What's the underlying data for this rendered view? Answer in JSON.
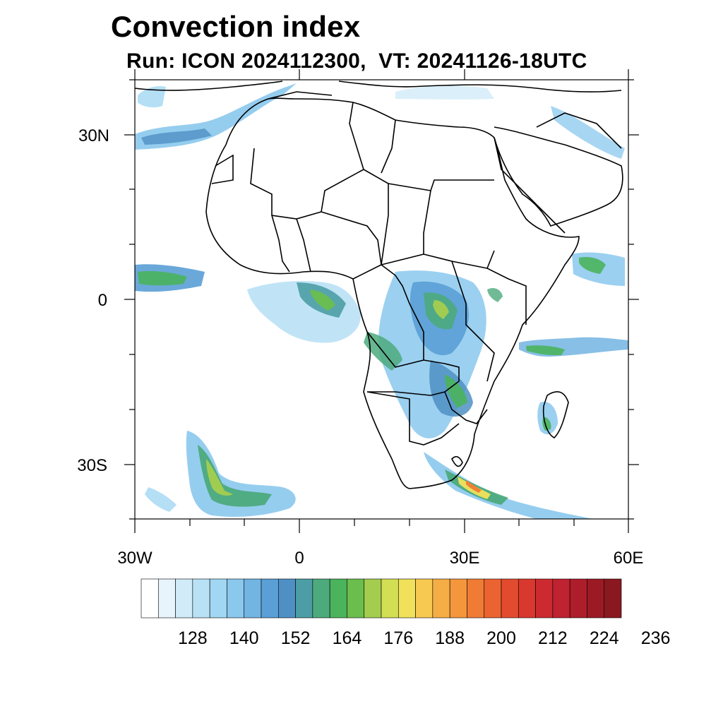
{
  "title": "Convection index",
  "subtitle": "Run: ICON 2024112300,  VT: 20241126-18UTC",
  "axes": {
    "lat_labels": [
      "30N",
      "0",
      "30S"
    ],
    "lon_labels": [
      "30W",
      "0",
      "30E",
      "60E"
    ]
  },
  "colorbar": {
    "colors": [
      "#ffffff",
      "#e8f4fb",
      "#d1ebf8",
      "#b9e1f5",
      "#a1d7f2",
      "#8ac8ed",
      "#72b4e2",
      "#5a9fd6",
      "#4f90c4",
      "#4c9da6",
      "#4caa7c",
      "#4ab35c",
      "#6bbe4d",
      "#a4cd4f",
      "#d2df52",
      "#f1e15a",
      "#f7c950",
      "#f5ae45",
      "#f4963c",
      "#f07b35",
      "#eb6330",
      "#e24b2d",
      "#d9382e",
      "#cc2a30",
      "#bf2230",
      "#ae1d2a",
      "#9b1a24",
      "#8a1820"
    ],
    "tick_labels": [
      "128",
      "140",
      "152",
      "164",
      "176",
      "188",
      "200",
      "212",
      "224",
      "236"
    ]
  },
  "map_data": {
    "region": "Africa",
    "lon_range": [
      -30,
      60
    ],
    "lat_range": [
      -40,
      40
    ],
    "variable": "Convection index"
  }
}
